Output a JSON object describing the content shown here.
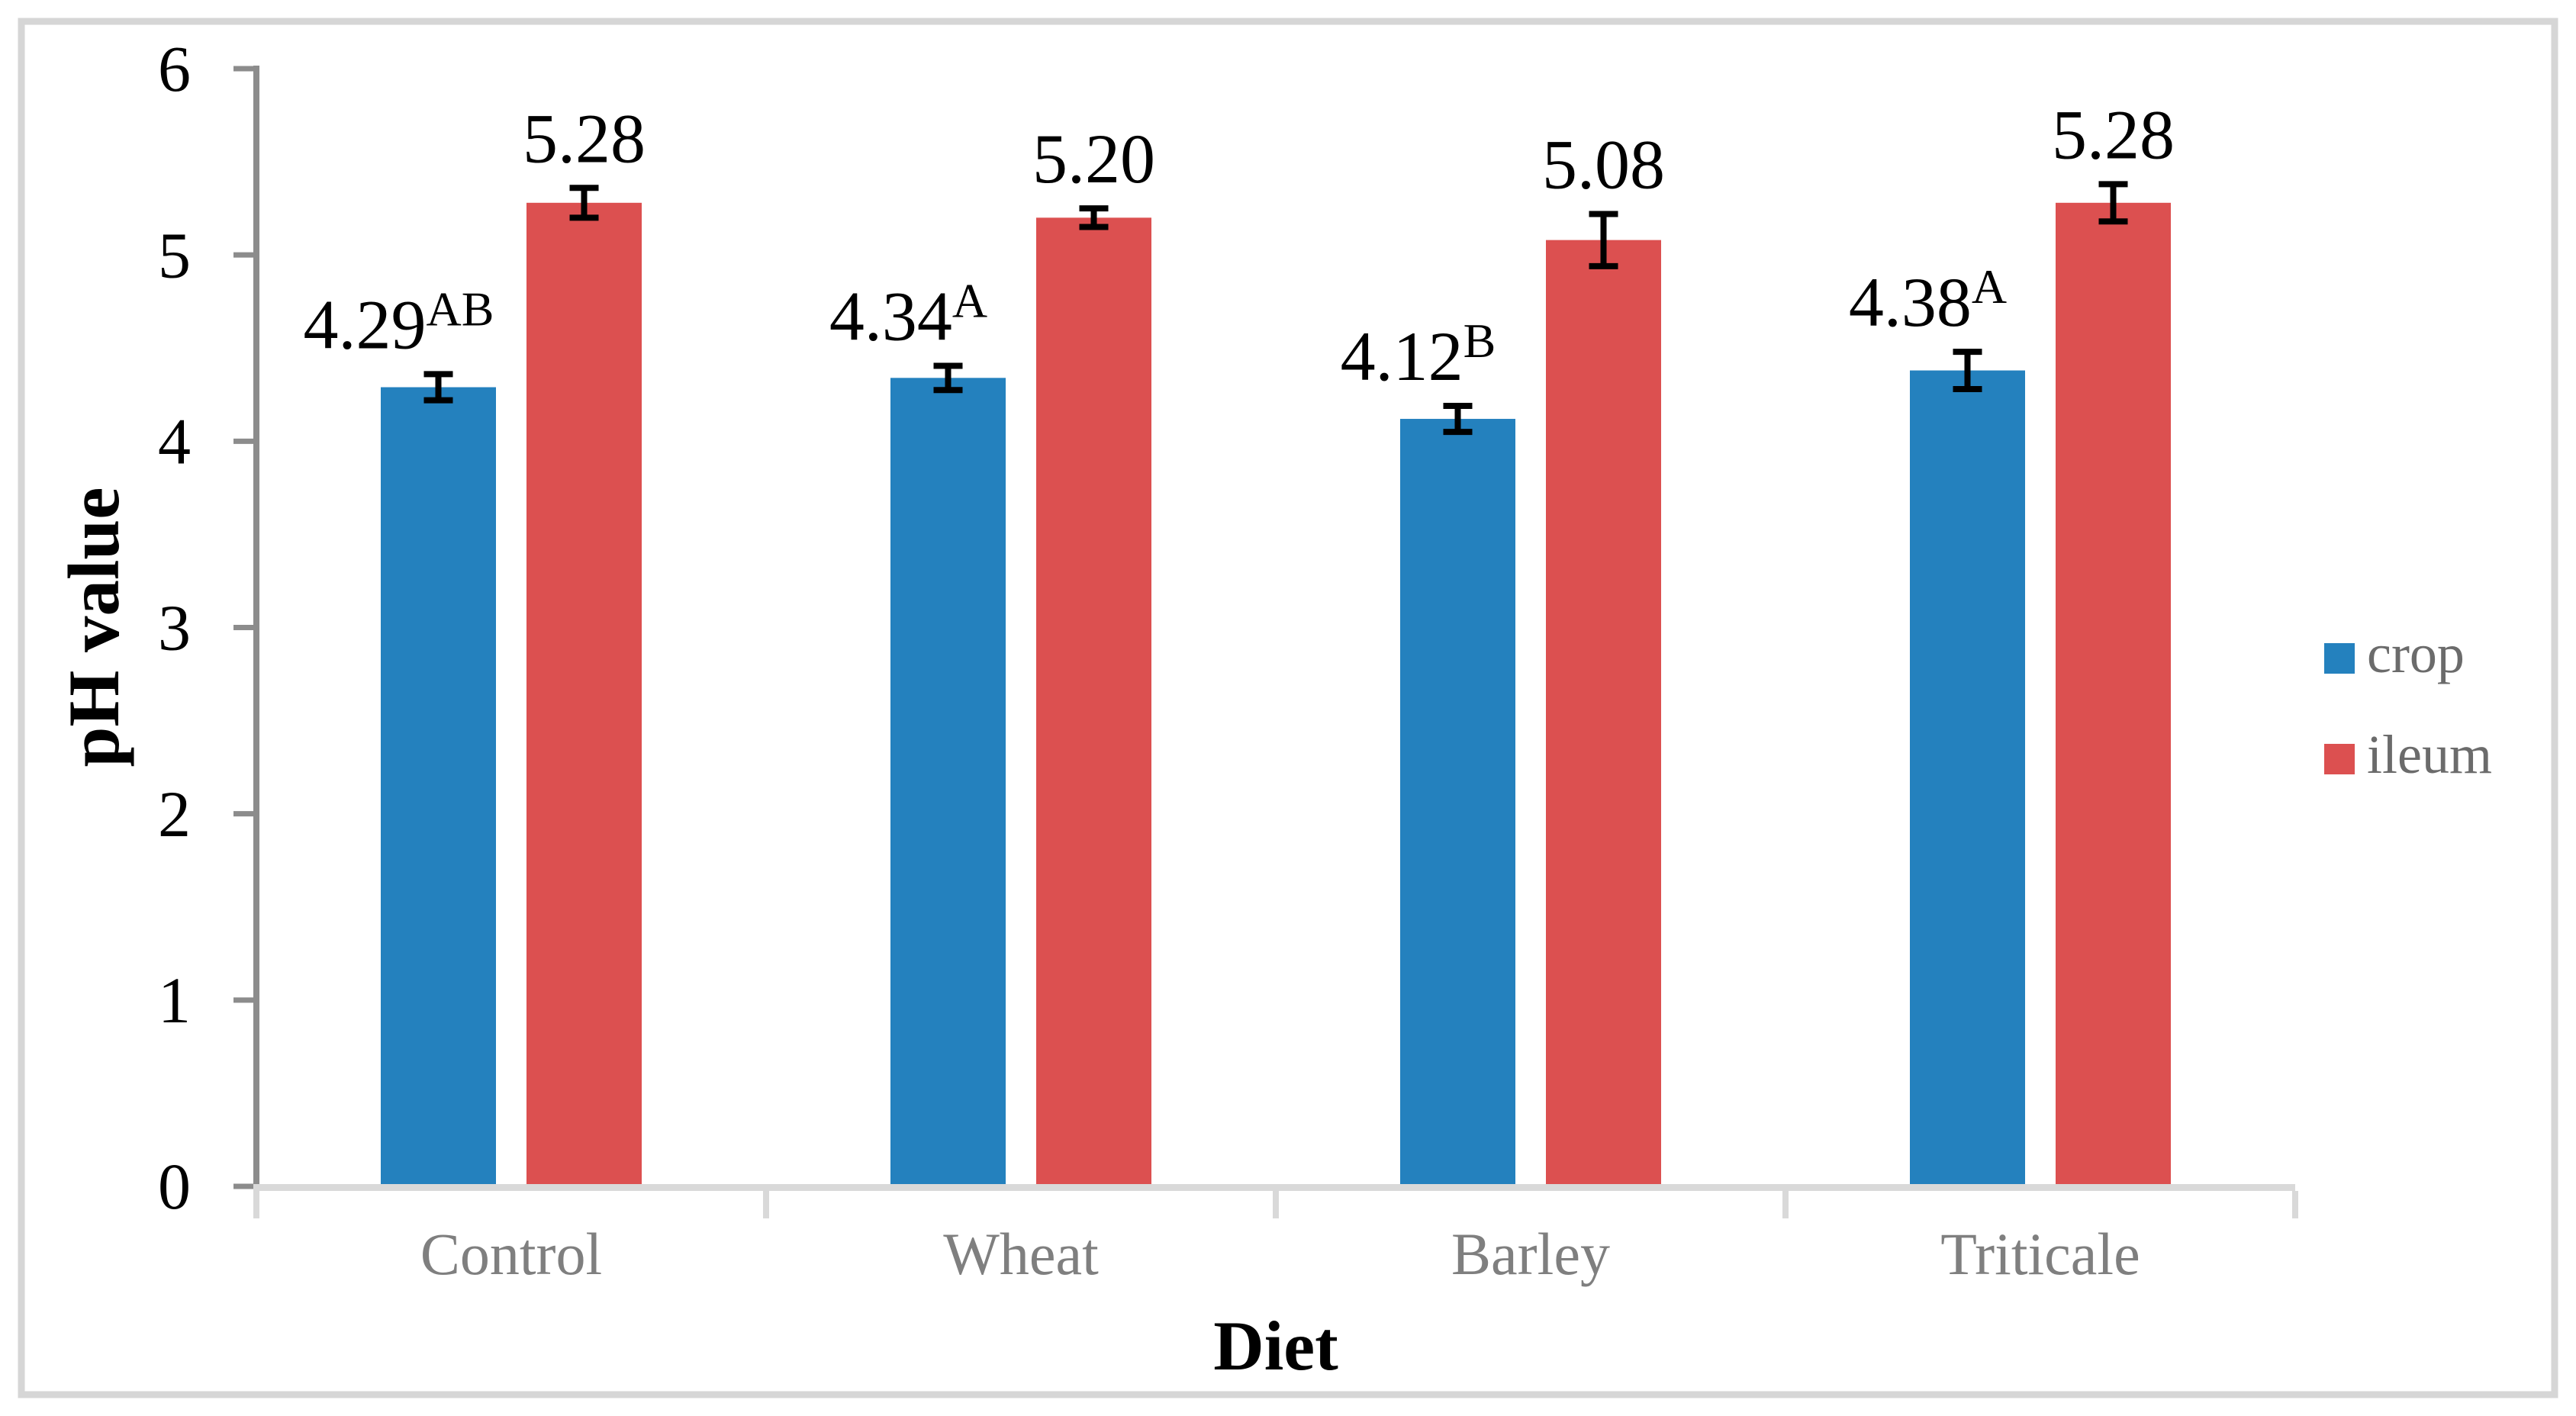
{
  "figure": {
    "frame_color": "#d6d6d6",
    "background_color": "#ffffff"
  },
  "chart_data": {
    "type": "bar",
    "title": "",
    "xlabel": "Diet",
    "ylabel": "pH value",
    "categories": [
      "Control",
      "Wheat",
      "Barley",
      "Triticale"
    ],
    "series": [
      {
        "name": "crop",
        "color": "#2481be",
        "values": [
          4.29,
          4.34,
          4.12,
          4.38
        ],
        "errors": [
          0.07,
          0.065,
          0.07,
          0.1
        ],
        "labels": [
          "4.29",
          "4.34",
          "4.12",
          "4.38"
        ],
        "superscripts": [
          "AB",
          "A",
          "B",
          "A"
        ],
        "label_offset_x": -52
      },
      {
        "name": "ileum",
        "color": "#dc5050",
        "values": [
          5.28,
          5.2,
          5.08,
          5.28
        ],
        "errors": [
          0.08,
          0.05,
          0.14,
          0.1
        ],
        "labels": [
          "5.28",
          "5.20",
          "5.08",
          "5.28"
        ],
        "superscripts": [
          "",
          "",
          "",
          ""
        ],
        "label_offset_x": 0
      }
    ],
    "ylim": [
      0,
      6
    ],
    "yticks": [
      0,
      1,
      2,
      3,
      4,
      5,
      6
    ],
    "grid": false,
    "legend_position": "right",
    "error_bar_color": "#000000",
    "data_label_color": "#000000",
    "y_axis_color": "#8c8c8c",
    "x_axis_color": "#d9d9d9",
    "category_text_color": "#7f7f7f",
    "legend_text_color": "#6b6b6b",
    "tick_label_color": "#000000"
  }
}
